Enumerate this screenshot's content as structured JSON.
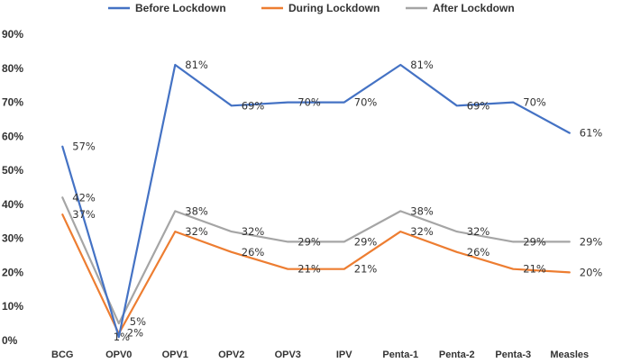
{
  "chart_data": {
    "type": "line",
    "title": "",
    "xlabel": "",
    "ylabel": "",
    "ylim": [
      0,
      90
    ],
    "yticks": [
      0,
      10,
      20,
      30,
      40,
      50,
      60,
      70,
      80,
      90
    ],
    "ytick_labels": [
      "0%",
      "10%",
      "20%",
      "30%",
      "40%",
      "50%",
      "60%",
      "70%",
      "80%",
      "90%"
    ],
    "grid": false,
    "legend_position": "top",
    "categories": [
      "BCG",
      "OPV0",
      "OPV1",
      "OPV2",
      "OPV3",
      "IPV",
      "Penta-1",
      "Penta-2",
      "Penta-3",
      "Measles"
    ],
    "series": [
      {
        "name": "Before Lockdown",
        "color": "#4472c4",
        "values": [
          57,
          1,
          81,
          69,
          70,
          70,
          81,
          69,
          70,
          61
        ],
        "labels": [
          "57%",
          "1%",
          "81%",
          "69%",
          "70%",
          "70%",
          "81%",
          "69%",
          "70%",
          "61%"
        ]
      },
      {
        "name": "During Lockdown",
        "color": "#ed7d31",
        "values": [
          37,
          2,
          32,
          26,
          21,
          21,
          32,
          26,
          21,
          20
        ],
        "labels": [
          "37%",
          "2%",
          "32%",
          "26%",
          "21%",
          "21%",
          "32%",
          "26%",
          "21%",
          "20%"
        ]
      },
      {
        "name": "After Lockdown",
        "color": "#a5a5a5",
        "values": [
          42,
          5,
          38,
          32,
          29,
          29,
          38,
          32,
          29,
          29
        ],
        "labels": [
          "42%",
          "5%",
          "38%",
          "32%",
          "29%",
          "29%",
          "38%",
          "32%",
          "29%",
          "29%"
        ]
      }
    ]
  }
}
